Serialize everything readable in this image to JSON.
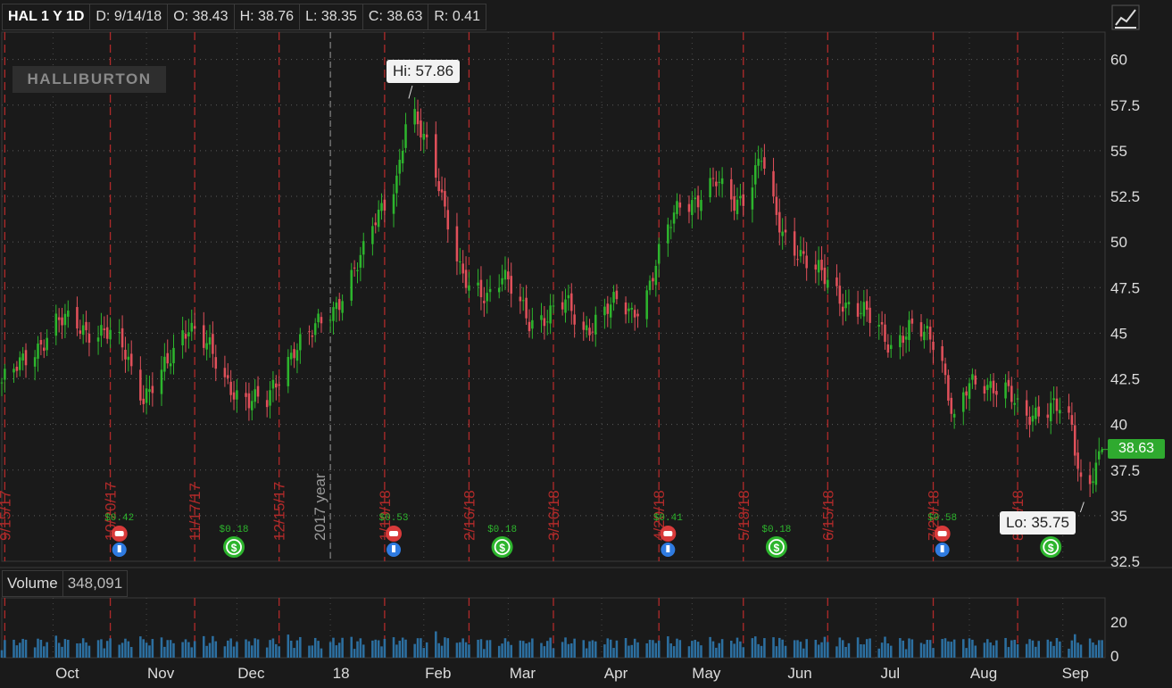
{
  "header": {
    "symbol": "HAL 1 Y 1D",
    "date": "D: 9/14/18",
    "open": "O: 38.43",
    "high": "H: 38.76",
    "low": "L: 38.35",
    "close": "C: 38.63",
    "range": "R: 0.41"
  },
  "logo_text": "HALLIBURTON",
  "hi_label": "Hi: 57.86",
  "lo_label": "Lo: 35.75",
  "last_price": "38.63",
  "volume": {
    "label": "Volume",
    "value": "348,091",
    "ticks": [
      "20",
      "0"
    ]
  },
  "year_marker": "2017 year",
  "colors": {
    "up": "#2db52d",
    "down": "#e0505a",
    "background": "#1a1a1a",
    "event_line": "#b02a2a"
  },
  "event_dates": [
    "9/15/17",
    "10/20/17",
    "11/17/17",
    "12/15/17",
    "1/19/18",
    "2/16/18",
    "3/16/18",
    "4/20/18",
    "5/18/18",
    "6/15/18",
    "7/20/18",
    "8/17/18"
  ],
  "earnings": [
    {
      "amount": "$0.42",
      "icon": "earnings-icon"
    },
    {
      "amount": "$0.53",
      "icon": "earnings-icon"
    },
    {
      "amount": "$0.41",
      "icon": "earnings-icon"
    },
    {
      "amount": "$0.58",
      "icon": "earnings-icon"
    }
  ],
  "dividends": [
    {
      "amount": "$0.18",
      "icon": "dividend-icon"
    },
    {
      "amount": "$0.18",
      "icon": "dividend-icon"
    },
    {
      "amount": "$0.18",
      "icon": "dividend-icon"
    },
    {
      "amount": "",
      "icon": "dividend-icon"
    }
  ],
  "chart_data": {
    "type": "candlestick",
    "title": "HAL 1 Y 1D",
    "y_ticks": [
      32.5,
      35,
      37.5,
      40,
      42.5,
      45,
      47.5,
      50,
      52.5,
      55,
      57.5,
      60
    ],
    "x_ticks": [
      "Oct",
      "Nov",
      "Dec",
      "18",
      "Feb",
      "Mar",
      "Apr",
      "May",
      "Jun",
      "Jul",
      "Aug",
      "Sep"
    ],
    "ylim": [
      32.5,
      61.5
    ],
    "high": 57.86,
    "low": 35.75,
    "last": 38.63,
    "close_series": [
      [
        "2017-09-14",
        42.3
      ],
      [
        "2017-09-20",
        43.2
      ],
      [
        "2017-09-27",
        44.5
      ],
      [
        "2017-10-02",
        45.6
      ],
      [
        "2017-10-06",
        45.6
      ],
      [
        "2017-10-12",
        45.2
      ],
      [
        "2017-10-18",
        45.1
      ],
      [
        "2017-10-24",
        44.2
      ],
      [
        "2017-10-27",
        43.1
      ],
      [
        "2017-10-31",
        41.6
      ],
      [
        "2017-11-03",
        42.1
      ],
      [
        "2017-11-08",
        43.2
      ],
      [
        "2017-11-11",
        44.2
      ],
      [
        "2017-11-15",
        45.6
      ],
      [
        "2017-11-19",
        45.0
      ],
      [
        "2017-11-22",
        44.1
      ],
      [
        "2017-11-26",
        42.3
      ],
      [
        "2017-12-01",
        41.8
      ],
      [
        "2017-12-05",
        41.5
      ],
      [
        "2017-12-11",
        41.1
      ],
      [
        "2017-12-15",
        42.6
      ],
      [
        "2017-12-20",
        44.3
      ],
      [
        "2017-12-26",
        45.0
      ],
      [
        "2018-01-02",
        46.3
      ],
      [
        "2018-01-08",
        48.2
      ],
      [
        "2018-01-12",
        49.3
      ],
      [
        "2018-01-16",
        51.2
      ],
      [
        "2018-01-19",
        52.3
      ],
      [
        "2018-01-23",
        53.5
      ],
      [
        "2018-01-27",
        57.3
      ],
      [
        "2018-01-30",
        56.2
      ],
      [
        "2018-02-03",
        55.1
      ],
      [
        "2018-02-06",
        53.4
      ],
      [
        "2018-02-09",
        51.2
      ],
      [
        "2018-02-13",
        48.3
      ],
      [
        "2018-02-16",
        47.3
      ],
      [
        "2018-02-22",
        47.2
      ],
      [
        "2018-02-27",
        48.3
      ],
      [
        "2018-03-03",
        47.0
      ],
      [
        "2018-03-08",
        45.6
      ],
      [
        "2018-03-14",
        46.1
      ],
      [
        "2018-03-20",
        46.6
      ],
      [
        "2018-03-26",
        45.1
      ],
      [
        "2018-04-01",
        46.2
      ],
      [
        "2018-04-06",
        46.6
      ],
      [
        "2018-04-11",
        46.1
      ],
      [
        "2018-04-16",
        47.3
      ],
      [
        "2018-04-20",
        49.2
      ],
      [
        "2018-04-23",
        50.6
      ],
      [
        "2018-04-27",
        52.2
      ],
      [
        "2018-05-03",
        52.4
      ],
      [
        "2018-05-09",
        53.2
      ],
      [
        "2018-05-15",
        52.3
      ],
      [
        "2018-05-19",
        52.6
      ],
      [
        "2018-05-24",
        54.6
      ],
      [
        "2018-05-27",
        52.2
      ],
      [
        "2018-05-31",
        50.6
      ],
      [
        "2018-06-05",
        49.6
      ],
      [
        "2018-06-09",
        48.5
      ],
      [
        "2018-06-13",
        48.2
      ],
      [
        "2018-06-17",
        47.6
      ],
      [
        "2018-06-21",
        46.6
      ],
      [
        "2018-06-26",
        46.1
      ],
      [
        "2018-07-01",
        45.6
      ],
      [
        "2018-07-06",
        44.4
      ],
      [
        "2018-07-12",
        45.1
      ],
      [
        "2018-07-18",
        44.9
      ],
      [
        "2018-07-22",
        44.6
      ],
      [
        "2018-07-24",
        42.6
      ],
      [
        "2018-07-27",
        40.1
      ],
      [
        "2018-08-01",
        42.1
      ],
      [
        "2018-08-07",
        42.3
      ],
      [
        "2018-08-13",
        42.0
      ],
      [
        "2018-08-19",
        40.1
      ],
      [
        "2018-08-24",
        40.9
      ],
      [
        "2018-08-29",
        41.1
      ],
      [
        "2018-09-01",
        40.6
      ],
      [
        "2018-09-04",
        39.6
      ],
      [
        "2018-09-06",
        37.6
      ],
      [
        "2018-09-08",
        36.1
      ],
      [
        "2018-09-11",
        37.6
      ],
      [
        "2018-09-14",
        38.63
      ]
    ],
    "volume_ticks": [
      0,
      20
    ]
  }
}
